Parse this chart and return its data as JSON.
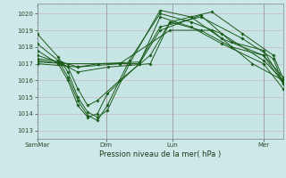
{
  "title": "",
  "xlabel": "Pression niveau de la mer( hPa )",
  "ylabel": "",
  "bg_color": "#cce8e8",
  "grid_major_color": "#aaaacc",
  "grid_minor_color": "#bbdddd",
  "line_color": "#1a5c1a",
  "ylim": [
    1012.5,
    1020.6
  ],
  "yticks": [
    1013,
    1014,
    1015,
    1016,
    1017,
    1018,
    1019,
    1020
  ],
  "xtick_labels": [
    "SamMar",
    "Dim",
    "Lun",
    "Mer"
  ],
  "xtick_positions": [
    0.0,
    0.28,
    0.55,
    0.92
  ],
  "x_max": 1.0,
  "lines": [
    {
      "x": [
        0.0,
        0.085,
        0.125,
        0.165,
        0.205,
        0.245,
        0.285,
        0.375,
        0.5,
        0.625,
        0.75,
        0.92,
        1.0
      ],
      "y": [
        1018.8,
        1017.4,
        1016.5,
        1015.0,
        1014.1,
        1013.8,
        1014.2,
        1017.0,
        1020.2,
        1019.8,
        1018.5,
        1017.5,
        1015.8
      ],
      "marker": "D",
      "markersize": 1.8
    },
    {
      "x": [
        0.0,
        0.085,
        0.125,
        0.165,
        0.205,
        0.245,
        0.285,
        0.375,
        0.5,
        0.625,
        0.75,
        0.92,
        1.0
      ],
      "y": [
        1018.2,
        1017.2,
        1016.2,
        1014.8,
        1013.9,
        1013.6,
        1014.5,
        1017.2,
        1020.0,
        1019.5,
        1018.8,
        1017.2,
        1016.0
      ],
      "marker": "D",
      "markersize": 1.8
    },
    {
      "x": [
        0.0,
        0.085,
        0.125,
        0.165,
        0.205,
        0.245,
        0.285,
        0.415,
        0.5,
        0.625,
        0.75,
        0.92,
        1.0
      ],
      "y": [
        1017.8,
        1017.0,
        1016.0,
        1014.5,
        1013.8,
        1014.0,
        1015.2,
        1017.0,
        1019.8,
        1019.2,
        1018.2,
        1017.0,
        1015.5
      ],
      "marker": "D",
      "markersize": 1.8
    },
    {
      "x": [
        0.0,
        0.085,
        0.125,
        0.165,
        0.205,
        0.245,
        0.335,
        0.46,
        0.54,
        0.665,
        0.79,
        0.92,
        1.0
      ],
      "y": [
        1017.5,
        1017.1,
        1016.8,
        1015.5,
        1014.5,
        1014.8,
        1016.0,
        1017.5,
        1019.5,
        1019.0,
        1018.0,
        1017.5,
        1016.2
      ],
      "marker": "D",
      "markersize": 1.8
    },
    {
      "x": [
        0.0,
        0.1,
        0.165,
        0.25,
        0.415,
        0.5,
        0.665,
        0.79,
        0.92,
        1.0
      ],
      "y": [
        1017.3,
        1017.1,
        1016.8,
        1017.0,
        1017.0,
        1019.0,
        1019.9,
        1018.3,
        1017.8,
        1015.9
      ],
      "marker": "D",
      "markersize": 1.8
    },
    {
      "x": [
        0.0,
        0.1,
        0.165,
        0.29,
        0.46,
        0.54,
        0.71,
        0.835,
        0.96,
        1.0
      ],
      "y": [
        1017.2,
        1017.0,
        1016.5,
        1016.8,
        1017.0,
        1019.5,
        1020.1,
        1018.8,
        1017.5,
        1016.1
      ],
      "marker": "D",
      "markersize": 1.8
    },
    {
      "x": [
        0.0,
        0.125,
        0.25,
        0.415,
        0.5,
        0.665,
        0.835,
        0.96,
        1.0
      ],
      "y": [
        1017.1,
        1017.0,
        1017.0,
        1017.1,
        1019.2,
        1019.8,
        1018.5,
        1017.3,
        1015.8
      ],
      "marker": "D",
      "markersize": 1.8
    },
    {
      "x": [
        0.0,
        0.165,
        0.335,
        0.54,
        0.71,
        0.875,
        1.0
      ],
      "y": [
        1017.0,
        1016.8,
        1017.0,
        1019.0,
        1019.0,
        1017.0,
        1016.0
      ],
      "marker": "D",
      "markersize": 1.8
    }
  ]
}
